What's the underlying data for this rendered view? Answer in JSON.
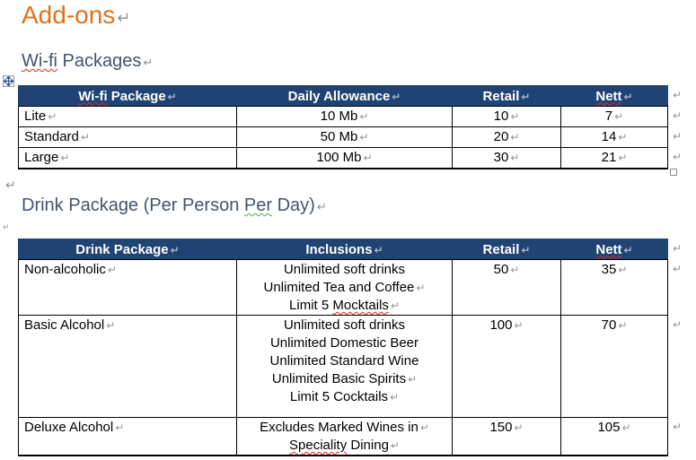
{
  "marks": {
    "paragraph": "↵"
  },
  "colors": {
    "accent_orange": "#E2711A",
    "heading_gray": "#44546A",
    "table_header_bg": "#1F4373",
    "table_header_text": "#ffffff",
    "mark_gray": "#8f969e",
    "header_mark_gray": "#a9b4c6",
    "wavy_red": "#e0281e",
    "wavy_green": "#53a653"
  },
  "title": {
    "text": "Add-ons"
  },
  "headings": {
    "wifi": {
      "text": "Wi-fi Packages",
      "wavy": {
        "start": 0,
        "len": 5,
        "color": "red"
      }
    },
    "drink": {
      "text": "Drink Package (Per Person Per Day)",
      "wavy": {
        "start": 26,
        "len": 3,
        "color": "green"
      }
    }
  },
  "wifi_table": {
    "columns": [
      {
        "label": "Wi-fi Package",
        "wavy": {
          "start": 0,
          "len": 5,
          "color": "red"
        }
      },
      {
        "label": "Daily Allowance"
      },
      {
        "label": "Retail"
      },
      {
        "label": "Nett",
        "wavy": {
          "start": 0,
          "len": 4,
          "color": "red"
        }
      }
    ],
    "rows": [
      {
        "cells": [
          "Lite",
          "10 Mb",
          "10",
          "7"
        ]
      },
      {
        "cells": [
          "Standard",
          "50 Mb",
          "20",
          "14"
        ]
      },
      {
        "cells": [
          "Large",
          "100 Mb",
          "30",
          "21"
        ]
      }
    ]
  },
  "drink_table": {
    "columns": [
      {
        "label": "Drink Package"
      },
      {
        "label": "Inclusions"
      },
      {
        "label": "Retail"
      },
      {
        "label": "Nett",
        "wavy": {
          "start": 0,
          "len": 4,
          "color": "red"
        }
      }
    ],
    "rows": [
      {
        "package": "Non-alcoholic",
        "inclusions": [
          {
            "text": "Unlimited soft drinks",
            "mark": false
          },
          {
            "text": "Unlimited Tea and Coffee",
            "mark": true
          },
          {
            "text": "Limit 5 Mocktails",
            "mark": true,
            "wavy": {
              "start": 8,
              "len": 9,
              "color": "red"
            }
          }
        ],
        "retail": "50",
        "nett": "35"
      },
      {
        "package": "Basic Alcohol",
        "inclusions": [
          {
            "text": "Unlimited soft drinks",
            "mark": false
          },
          {
            "text": "Unlimited Domestic Beer",
            "mark": false
          },
          {
            "text": "Unlimited Standard Wine",
            "mark": false
          },
          {
            "text": "Unlimited Basic Spirits",
            "mark": true
          },
          {
            "text": "Limit 5 Cocktails",
            "mark": true
          }
        ],
        "retail": "100",
        "nett": "70"
      },
      {
        "package": "Deluxe Alcohol",
        "inclusions": [
          {
            "text": "Excludes Marked Wines in",
            "mark": true
          },
          {
            "text": "Speciality Dining",
            "mark": true,
            "wavy": {
              "start": 0,
              "len": 10,
              "color": "red"
            }
          }
        ],
        "retail": "150",
        "nett": "105"
      }
    ]
  }
}
